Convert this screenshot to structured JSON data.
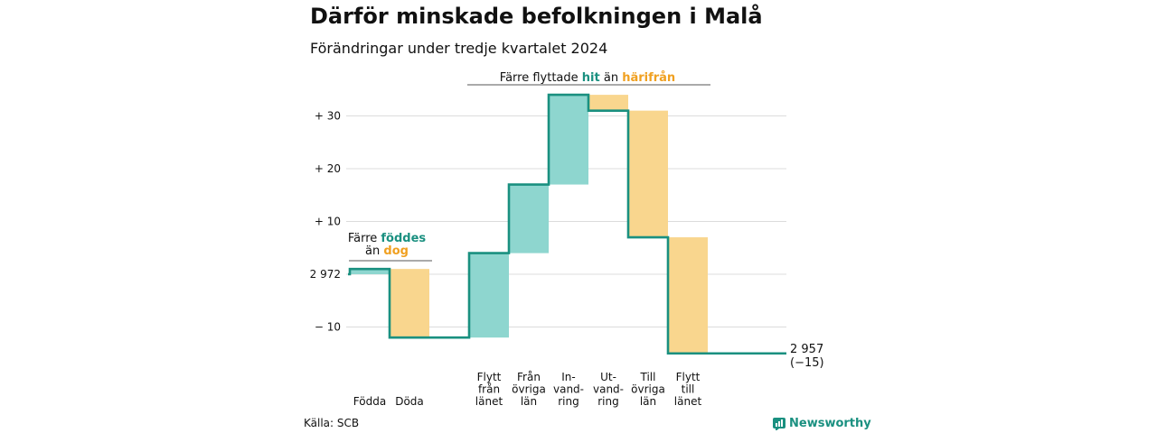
{
  "title": "Därför minskade befolkningen i Malå",
  "subtitle": "Förändringar under tredje kvartalet 2024",
  "source": "Källa: SCB",
  "brand": "Newsworthy",
  "colors": {
    "increase": "#8ed6cf",
    "decrease": "#f9d68e",
    "line": "#1a9080",
    "green_text": "#1a9080",
    "orange_text": "#f0a020"
  },
  "chart_data": {
    "type": "waterfall",
    "start_value": 2972,
    "end_value": 2957,
    "end_label": "2 957",
    "end_change_label": "(−15)",
    "y_tick_labels": [
      "+ 30",
      "+ 20",
      "+ 10",
      "2 972",
      "− 10"
    ],
    "y_tick_values": [
      30,
      20,
      10,
      0,
      -10
    ],
    "ylim": [
      -15,
      34
    ],
    "grid": true,
    "steps": [
      {
        "label": [
          "Födda"
        ],
        "change": 1,
        "kind": "increase"
      },
      {
        "label": [
          "Döda"
        ],
        "change": -13,
        "kind": "decrease"
      },
      {
        "label": [
          "Flytt",
          "från",
          "länet"
        ],
        "change": 16,
        "kind": "increase"
      },
      {
        "label": [
          "Från",
          "övriga",
          "län"
        ],
        "change": 13,
        "kind": "increase"
      },
      {
        "label": [
          "In-",
          "vand-",
          "ring"
        ],
        "change": 17,
        "kind": "increase"
      },
      {
        "label": [
          "Ut-",
          "vand-",
          "ring"
        ],
        "change": -3,
        "kind": "decrease"
      },
      {
        "label": [
          "Till",
          "övriga",
          "län"
        ],
        "change": -24,
        "kind": "decrease"
      },
      {
        "label": [
          "Flytt",
          "till",
          "länet"
        ],
        "change": -22,
        "kind": "decrease"
      }
    ],
    "annotations": [
      {
        "parts": [
          [
            "Färre ",
            "plain"
          ],
          [
            "föddes",
            "green"
          ]
        ],
        "parts2": [
          [
            "än ",
            "plain"
          ],
          [
            "dog",
            "orange"
          ]
        ]
      },
      {
        "parts": [
          [
            "Färre flyttade ",
            "plain"
          ],
          [
            "hit",
            "green"
          ],
          [
            " än ",
            "plain"
          ],
          [
            "härifrån",
            "orange"
          ]
        ]
      }
    ]
  }
}
